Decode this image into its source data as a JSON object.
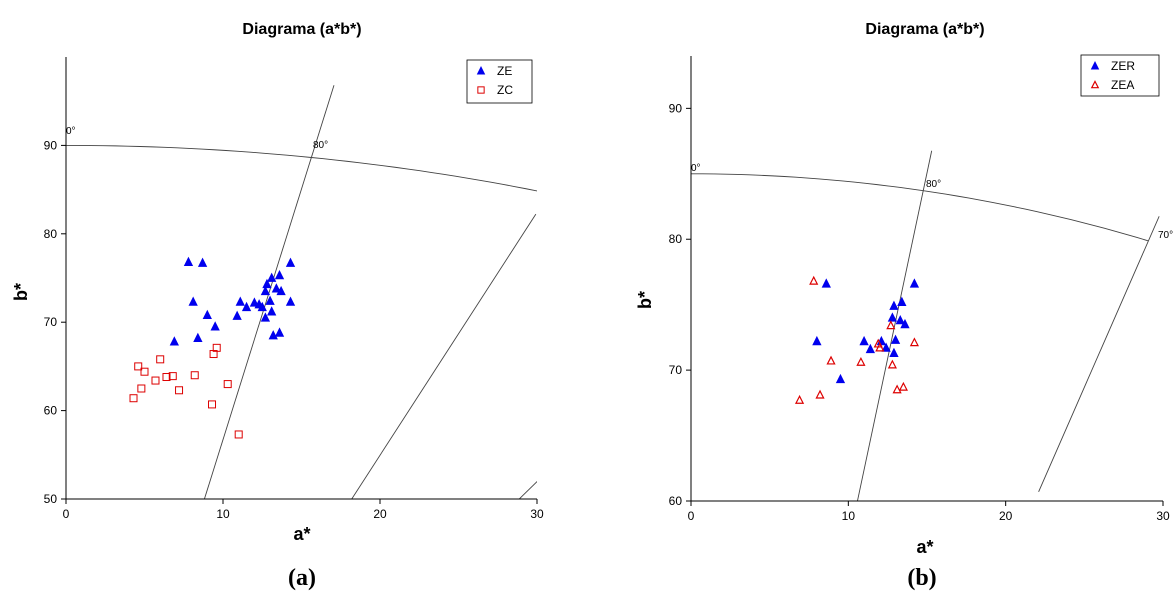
{
  "chart_data": [
    {
      "type": "scatter",
      "panel_label": "(a)",
      "title": "Diagrama (a*b*)",
      "xlabel": "a*",
      "ylabel": "b*",
      "xlim": [
        0,
        30
      ],
      "ylim": [
        50,
        100
      ],
      "x_ticks": [
        "0",
        "10",
        "20",
        "30"
      ],
      "y_ticks": [
        "50",
        "60",
        "70",
        "80",
        "90"
      ],
      "grid": false,
      "legend": "top-right",
      "hue_labels": [
        "0°",
        "80°"
      ],
      "series": [
        {
          "name": "ZE",
          "marker": "filled-triangle",
          "color": "#0000ee",
          "points": [
            [
              7.8,
              76.8
            ],
            [
              8.7,
              76.7
            ],
            [
              14.3,
              76.7
            ],
            [
              13.1,
              75.0
            ],
            [
              13.6,
              75.3
            ],
            [
              12.8,
              74.3
            ],
            [
              13.4,
              73.8
            ],
            [
              13.7,
              73.5
            ],
            [
              12.7,
              73.5
            ],
            [
              8.1,
              72.3
            ],
            [
              11.1,
              72.3
            ],
            [
              11.5,
              71.7
            ],
            [
              12.0,
              72.2
            ],
            [
              12.3,
              72.0
            ],
            [
              12.5,
              71.7
            ],
            [
              13.0,
              72.4
            ],
            [
              13.1,
              71.2
            ],
            [
              14.3,
              72.3
            ],
            [
              9.0,
              70.8
            ],
            [
              10.9,
              70.7
            ],
            [
              12.7,
              70.5
            ],
            [
              9.5,
              69.5
            ],
            [
              6.9,
              67.8
            ],
            [
              8.4,
              68.2
            ],
            [
              13.2,
              68.5
            ],
            [
              13.6,
              68.8
            ]
          ]
        },
        {
          "name": "ZC",
          "marker": "open-square",
          "color": "#dd0000",
          "points": [
            [
              4.6,
              65.0
            ],
            [
              5.0,
              64.4
            ],
            [
              6.0,
              65.8
            ],
            [
              9.4,
              66.4
            ],
            [
              9.6,
              67.1
            ],
            [
              5.7,
              63.4
            ],
            [
              6.4,
              63.8
            ],
            [
              6.8,
              63.9
            ],
            [
              8.2,
              64.0
            ],
            [
              4.8,
              62.5
            ],
            [
              7.2,
              62.3
            ],
            [
              10.3,
              63.0
            ],
            [
              4.3,
              61.4
            ],
            [
              9.3,
              60.7
            ],
            [
              11.0,
              57.3
            ]
          ]
        }
      ]
    },
    {
      "type": "scatter",
      "panel_label": "(b)",
      "title": "Diagrama (a*b*)",
      "xlabel": "a*",
      "ylabel": "b*",
      "xlim": [
        0,
        30
      ],
      "ylim": [
        60,
        94
      ],
      "x_ticks": [
        "0",
        "10",
        "20",
        "30"
      ],
      "y_ticks": [
        "60",
        "70",
        "80",
        "90"
      ],
      "grid": false,
      "legend": "top-right",
      "hue_labels": [
        "0°",
        "80°",
        "70°"
      ],
      "series": [
        {
          "name": "ZER",
          "marker": "filled-triangle",
          "color": "#0000ee",
          "points": [
            [
              8.6,
              76.6
            ],
            [
              14.2,
              76.6
            ],
            [
              12.9,
              74.9
            ],
            [
              13.4,
              75.2
            ],
            [
              12.8,
              74.0
            ],
            [
              13.3,
              73.8
            ],
            [
              13.6,
              73.5
            ],
            [
              8.0,
              72.2
            ],
            [
              11.0,
              72.2
            ],
            [
              11.4,
              71.6
            ],
            [
              12.1,
              72.2
            ],
            [
              12.4,
              71.7
            ],
            [
              13.0,
              72.3
            ],
            [
              12.9,
              71.3
            ],
            [
              9.5,
              69.3
            ]
          ]
        },
        {
          "name": "ZEA",
          "marker": "open-triangle",
          "color": "#dd0000",
          "points": [
            [
              7.8,
              76.8
            ],
            [
              12.7,
              73.4
            ],
            [
              8.9,
              70.7
            ],
            [
              10.8,
              70.6
            ],
            [
              11.9,
              72.0
            ],
            [
              12.0,
              71.7
            ],
            [
              14.2,
              72.1
            ],
            [
              12.8,
              70.4
            ],
            [
              6.9,
              67.7
            ],
            [
              8.2,
              68.1
            ],
            [
              13.1,
              68.5
            ],
            [
              13.5,
              68.7
            ]
          ]
        }
      ]
    }
  ]
}
